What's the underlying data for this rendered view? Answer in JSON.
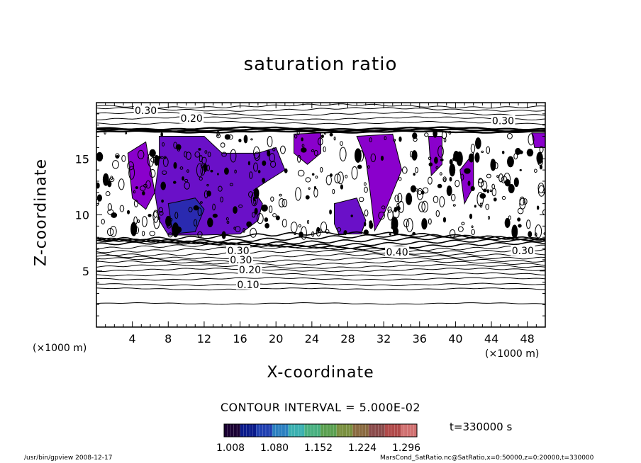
{
  "chart_data": {
    "type": "heatmap",
    "title": "saturation ratio",
    "xlabel": "X-coordinate",
    "ylabel": "Z-coordinate",
    "x_unit_label_left": "(×1000 m)",
    "x_unit_label_right": "(×1000 m)",
    "xlim": [
      0,
      50
    ],
    "ylim": [
      0,
      20
    ],
    "x_ticks": [
      "4",
      "8",
      "12",
      "16",
      "20",
      "24",
      "28",
      "32",
      "36",
      "40",
      "44",
      "48"
    ],
    "y_ticks": [
      "5",
      "10",
      "15"
    ],
    "contour_interval_label": "CONTOUR INTERVAL = 5.000E-02",
    "contour_levels_labeled": [
      {
        "label": "0.30",
        "x": 5.5,
        "y": 19.3
      },
      {
        "label": "0.20",
        "x": 10.6,
        "y": 18.6
      },
      {
        "label": "0.30",
        "x": 45.3,
        "y": 18.4
      },
      {
        "label": "0.30",
        "x": 15.8,
        "y": 6.8
      },
      {
        "label": "0.30",
        "x": 16.1,
        "y": 6.0
      },
      {
        "label": "0.20",
        "x": 17.1,
        "y": 5.1
      },
      {
        "label": "0.10",
        "x": 16.9,
        "y": 3.8
      },
      {
        "label": "0.40",
        "x": 33.5,
        "y": 6.7
      },
      {
        "label": "0.30",
        "x": 47.5,
        "y": 6.8
      }
    ],
    "colorbar": {
      "tick_labels": [
        "1.008",
        "1.080",
        "1.152",
        "1.224",
        "1.296"
      ],
      "colors": [
        "#1a0033",
        "#0a1a8a",
        "#1f3fb0",
        "#2a7fc0",
        "#3ab0b0",
        "#48b080",
        "#5aa050",
        "#7a9040",
        "#8a6a40",
        "#8a4a4a",
        "#b04a4a",
        "#d07070"
      ]
    },
    "fill_regions_colors": {
      "low": "#8a00cc",
      "mid": "#6a10c8",
      "high": "#2a2ab0"
    },
    "time_label": "t=330000 s"
  },
  "footer": {
    "left": "/usr/bin/gpview  2008-12-17",
    "right": "MarsCond_SatRatio.nc@SatRatio,x=0:50000,z=0:20000,t=330000"
  }
}
